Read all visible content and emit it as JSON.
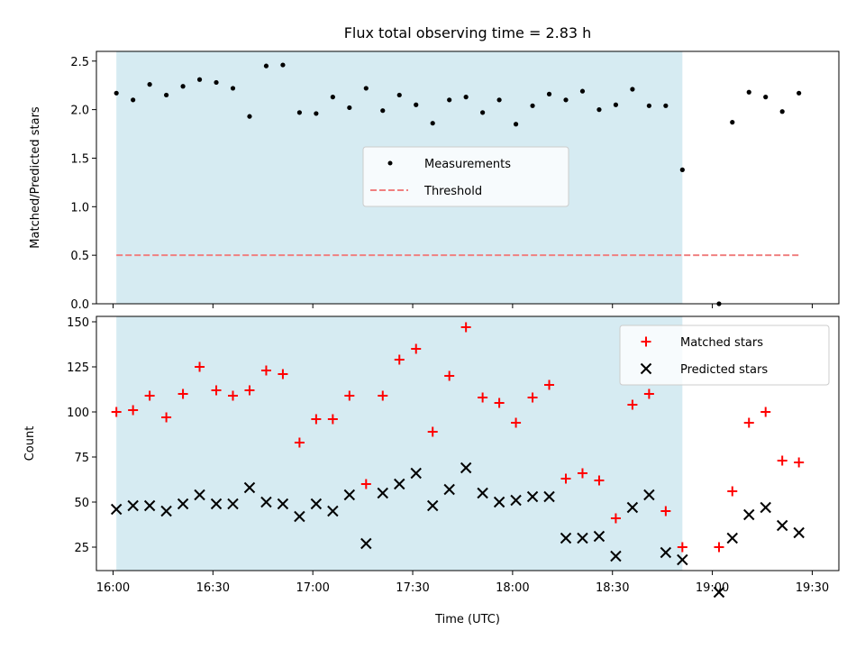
{
  "chart_data": [
    {
      "type": "scatter",
      "title": "Flux total observing time = 2.83 h",
      "xlabel": "",
      "ylabel": "Matched/Predicted stars",
      "ylim": [
        0,
        2.6
      ],
      "yticks": [
        0.0,
        0.5,
        1.0,
        1.5,
        2.0,
        2.5
      ],
      "ytick_labels": [
        "0.0",
        "0.5",
        "1.0",
        "1.5",
        "2.0",
        "2.5"
      ],
      "shaded_span": [
        "16:01",
        "18:51"
      ],
      "shade_color": "#add8e6",
      "legend_position": "center",
      "series": [
        {
          "name": "Measurements",
          "marker": "dot",
          "color": "#000000",
          "x": [
            "16:01",
            "16:06",
            "16:11",
            "16:16",
            "16:21",
            "16:26",
            "16:31",
            "16:36",
            "16:41",
            "16:46",
            "16:51",
            "16:56",
            "17:01",
            "17:06",
            "17:11",
            "17:16",
            "17:21",
            "17:26",
            "17:31",
            "17:36",
            "17:41",
            "17:46",
            "17:51",
            "17:56",
            "18:01",
            "18:06",
            "18:11",
            "18:16",
            "18:21",
            "18:26",
            "18:31",
            "18:36",
            "18:41",
            "18:46",
            "18:51",
            "19:02",
            "19:06",
            "19:11",
            "19:16",
            "19:21",
            "19:26"
          ],
          "y": [
            2.17,
            2.1,
            2.26,
            2.15,
            2.24,
            2.31,
            2.28,
            2.22,
            1.93,
            2.45,
            2.46,
            1.97,
            1.96,
            2.13,
            2.02,
            2.22,
            1.99,
            2.15,
            2.05,
            1.86,
            2.1,
            2.13,
            1.97,
            2.1,
            1.85,
            2.04,
            2.16,
            2.1,
            2.19,
            2.0,
            2.05,
            2.21,
            2.04,
            2.04,
            1.38,
            0.0,
            1.87,
            2.18,
            2.13,
            1.98,
            2.17
          ]
        },
        {
          "name": "Threshold",
          "style": "dashed",
          "color": "#f08080",
          "x": [
            "16:01",
            "19:26"
          ],
          "y": [
            0.5,
            0.5
          ]
        }
      ]
    },
    {
      "type": "scatter",
      "xlabel": "Time (UTC)",
      "ylabel": "Count",
      "ylim": [
        12,
        153
      ],
      "yticks": [
        25,
        50,
        75,
        100,
        125,
        150
      ],
      "ytick_labels": [
        "25",
        "50",
        "75",
        "100",
        "125",
        "150"
      ],
      "xlim": [
        "15:55",
        "19:38"
      ],
      "xticks": [
        "16:00",
        "16:30",
        "17:00",
        "17:30",
        "18:00",
        "18:30",
        "19:00",
        "19:30"
      ],
      "shaded_span": [
        "16:01",
        "18:51"
      ],
      "shade_color": "#add8e6",
      "legend_position": "top-right",
      "x": [
        "16:01",
        "16:06",
        "16:11",
        "16:16",
        "16:21",
        "16:26",
        "16:31",
        "16:36",
        "16:41",
        "16:46",
        "16:51",
        "16:56",
        "17:01",
        "17:06",
        "17:11",
        "17:16",
        "17:21",
        "17:26",
        "17:31",
        "17:36",
        "17:41",
        "17:46",
        "17:51",
        "17:56",
        "18:01",
        "18:06",
        "18:11",
        "18:16",
        "18:21",
        "18:26",
        "18:31",
        "18:36",
        "18:41",
        "18:46",
        "18:51",
        "19:02",
        "19:06",
        "19:11",
        "19:16",
        "19:21",
        "19:26"
      ],
      "series": [
        {
          "name": "Matched stars",
          "marker": "plus",
          "color": "#ff0000",
          "values": [
            100,
            101,
            109,
            97,
            110,
            125,
            112,
            109,
            112,
            123,
            121,
            83,
            96,
            96,
            109,
            60,
            109,
            129,
            135,
            89,
            120,
            147,
            108,
            105,
            94,
            108,
            115,
            63,
            66,
            62,
            41,
            104,
            110,
            45,
            25,
            25,
            56,
            94,
            100,
            73,
            72
          ]
        },
        {
          "name": "Predicted stars",
          "marker": "x",
          "color": "#000000",
          "values": [
            46,
            48,
            48,
            45,
            49,
            54,
            49,
            49,
            58,
            50,
            49,
            42,
            49,
            45,
            54,
            27,
            55,
            60,
            66,
            48,
            57,
            69,
            55,
            50,
            51,
            53,
            53,
            30,
            30,
            31,
            20,
            47,
            54,
            22,
            18,
            0,
            30,
            43,
            47,
            37,
            33
          ]
        }
      ]
    }
  ]
}
